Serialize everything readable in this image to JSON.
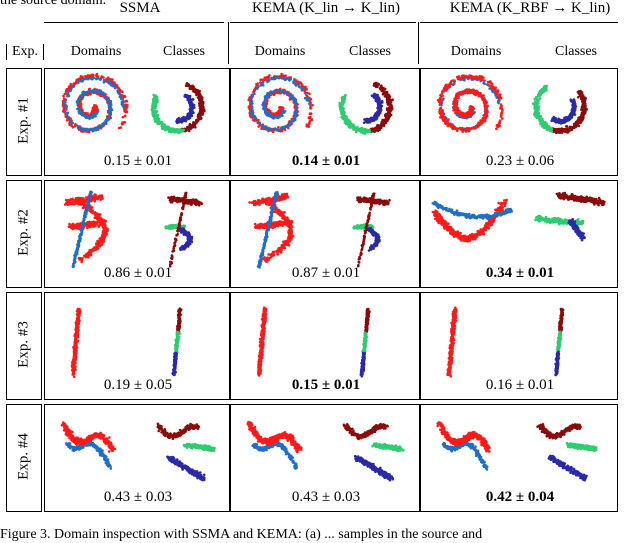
{
  "caption_top_fragment": "the source domain.",
  "caption_bottom_fragment": "Figure 3. Domain inspection with SSMA and KEMA: (a) ... samples in the source and",
  "header": {
    "exp_label": "Exp.",
    "methods": [
      {
        "name": "SSMA"
      },
      {
        "name": "KEMA (K_lin → K_lin)"
      },
      {
        "name": "KEMA (K_RBF → K_lin)"
      }
    ],
    "sub_domains": "Domains",
    "sub_classes": "Classes"
  },
  "experiments": [
    {
      "label": "Exp. #1",
      "scores": [
        "0.15 ± 0.01",
        "0.14 ± 0.01",
        "0.23 ± 0.06"
      ],
      "best_index": 1
    },
    {
      "label": "Exp. #2",
      "scores": [
        "0.86 ± 0.01",
        "0.87 ± 0.01",
        "0.34 ± 0.01"
      ],
      "best_index": 2
    },
    {
      "label": "Exp. #3",
      "scores": [
        "0.19 ± 0.05",
        "0.15 ± 0.01",
        "0.16 ± 0.01"
      ],
      "best_index": 1
    },
    {
      "label": "Exp. #4",
      "scores": [
        "0.43 ± 0.03",
        "0.43 ± 0.03",
        "0.42 ± 0.04"
      ],
      "best_index": 2
    }
  ],
  "colors": {
    "domain_a": "#ff1a1a",
    "domain_b": "#1f6fc4",
    "class_1": "#8b0a0a",
    "class_2": "#2ecc71",
    "class_3": "#2a2aa8"
  }
}
